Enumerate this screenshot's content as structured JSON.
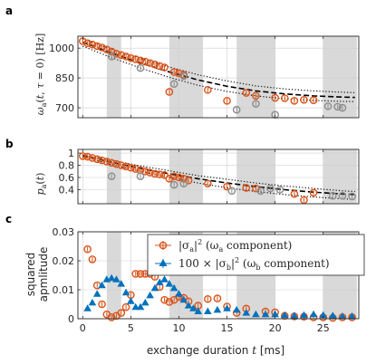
{
  "colors": {
    "orange": "#D95319",
    "blue": "#0072BD",
    "gray": "#8C8C8C",
    "shade": "#D9D9D9",
    "grid": "#E6E6E6"
  },
  "shaded_regions_ms": [
    [
      2.5,
      4
    ],
    [
      9,
      12.5
    ],
    [
      16,
      20
    ],
    [
      25,
      28.5
    ]
  ],
  "chart_data": [
    {
      "panel": "a",
      "type": "scatter",
      "ylabel": "ω_a(t, τ = 0) [Hz]",
      "xlim": [
        -0.5,
        28.7
      ],
      "ylim": [
        650,
        1060
      ],
      "yticks": [
        700,
        850,
        1000
      ],
      "ytick_labels": [
        "700",
        "850",
        "1000"
      ],
      "grid": true,
      "series": [
        {
          "marker": "circle",
          "color": "orange",
          "points": [
            [
              0.0,
              1035
            ],
            [
              0.5,
              1025
            ],
            [
              1.0,
              1018
            ],
            [
              1.5,
              1010
            ],
            [
              2.0,
              1003
            ],
            [
              2.5,
              993
            ],
            [
              3.0,
              983
            ],
            [
              3.5,
              972
            ],
            [
              4.0,
              965
            ],
            [
              4.5,
              958
            ],
            [
              5.0,
              950
            ],
            [
              5.5,
              944
            ],
            [
              6.0,
              938
            ],
            [
              6.5,
              932
            ],
            [
              7.0,
              925
            ],
            [
              7.5,
              918
            ],
            [
              8.0,
              910
            ],
            [
              8.5,
              903
            ],
            [
              9.0,
              780
            ],
            [
              9.5,
              880
            ],
            [
              10.0,
              873
            ],
            [
              10.5,
              866
            ],
            [
              13.0,
              790
            ],
            [
              15.0,
              735
            ],
            [
              17.0,
              775
            ],
            [
              18.0,
              760
            ],
            [
              20.0,
              750
            ],
            [
              21.0,
              748
            ],
            [
              22.0,
              735
            ],
            [
              23.0,
              740
            ],
            [
              24.0,
              738
            ]
          ]
        },
        {
          "marker": "circle",
          "color": "gray",
          "points": [
            [
              3.0,
              958
            ],
            [
              6.0,
              900
            ],
            [
              9.5,
              820
            ],
            [
              10.5,
              860
            ],
            [
              16.0,
              690
            ],
            [
              18.0,
              720
            ],
            [
              20.0,
              665
            ],
            [
              25.5,
              708
            ],
            [
              26.5,
              705
            ],
            [
              27.0,
              700
            ]
          ]
        }
      ],
      "curves": [
        {
          "style": "dashed",
          "points": [
            [
              0,
              1030
            ],
            [
              3,
              975
            ],
            [
              6,
              925
            ],
            [
              9,
              880
            ],
            [
              12,
              840
            ],
            [
              15,
              808
            ],
            [
              18,
              785
            ],
            [
              21,
              770
            ],
            [
              24,
              760
            ],
            [
              27,
              754
            ],
            [
              28.3,
              752
            ]
          ]
        },
        {
          "style": "dotted",
          "points": [
            [
              0,
              1045
            ],
            [
              3,
              995
            ],
            [
              6,
              948
            ],
            [
              9,
              905
            ],
            [
              12,
              866
            ],
            [
              15,
              835
            ],
            [
              18,
              810
            ],
            [
              21,
              795
            ],
            [
              24,
              785
            ],
            [
              27,
              778
            ],
            [
              28.3,
              776
            ]
          ]
        },
        {
          "style": "dotted",
          "points": [
            [
              0,
              1010
            ],
            [
              3,
              952
            ],
            [
              6,
              900
            ],
            [
              9,
              853
            ],
            [
              12,
              813
            ],
            [
              15,
              782
            ],
            [
              18,
              760
            ],
            [
              21,
              745
            ],
            [
              24,
              737
            ],
            [
              27,
              732
            ],
            [
              28.3,
              731
            ]
          ]
        }
      ]
    },
    {
      "panel": "b",
      "type": "scatter",
      "ylabel": "p_a(t)",
      "xlim": [
        -0.5,
        28.7
      ],
      "ylim": [
        0.17,
        1.06
      ],
      "yticks": [
        0.4,
        0.6,
        0.8,
        1.0
      ],
      "ytick_labels": [
        "0.4",
        "0.6",
        "0.8",
        "1"
      ],
      "grid": true,
      "series": [
        {
          "marker": "circle",
          "color": "orange",
          "points": [
            [
              0.0,
              0.95
            ],
            [
              0.5,
              0.94
            ],
            [
              1.0,
              0.92
            ],
            [
              1.5,
              0.9
            ],
            [
              2.0,
              0.88
            ],
            [
              2.5,
              0.86
            ],
            [
              3.0,
              0.84
            ],
            [
              3.5,
              0.82
            ],
            [
              4.0,
              0.8
            ],
            [
              4.5,
              0.78
            ],
            [
              5.0,
              0.76
            ],
            [
              5.5,
              0.74
            ],
            [
              6.0,
              0.72
            ],
            [
              6.5,
              0.7
            ],
            [
              7.0,
              0.68
            ],
            [
              7.5,
              0.66
            ],
            [
              8.0,
              0.65
            ],
            [
              8.5,
              0.64
            ],
            [
              9.0,
              0.58
            ],
            [
              9.5,
              0.62
            ],
            [
              10.0,
              0.6
            ],
            [
              10.5,
              0.58
            ],
            [
              11.0,
              0.55
            ],
            [
              13.0,
              0.5
            ],
            [
              15.0,
              0.45
            ],
            [
              17.0,
              0.43
            ],
            [
              18.0,
              0.42
            ],
            [
              22.0,
              0.33
            ],
            [
              23.0,
              0.23
            ],
            [
              24.0,
              0.35
            ]
          ]
        },
        {
          "marker": "circle",
          "color": "gray",
          "points": [
            [
              3.0,
              0.62
            ],
            [
              6.0,
              0.62
            ],
            [
              9.5,
              0.48
            ],
            [
              10.5,
              0.5
            ],
            [
              15.5,
              0.38
            ],
            [
              18.5,
              0.38
            ],
            [
              19.5,
              0.42
            ],
            [
              20.5,
              0.4
            ],
            [
              26.0,
              0.3
            ],
            [
              27.0,
              0.3
            ],
            [
              28.0,
              0.29
            ]
          ]
        }
      ],
      "curves": [
        {
          "style": "dashed",
          "points": [
            [
              0,
              0.96
            ],
            [
              3,
              0.85
            ],
            [
              6,
              0.75
            ],
            [
              9,
              0.66
            ],
            [
              12,
              0.58
            ],
            [
              15,
              0.51
            ],
            [
              18,
              0.45
            ],
            [
              21,
              0.4
            ],
            [
              24,
              0.36
            ],
            [
              27,
              0.33
            ],
            [
              28.3,
              0.32
            ]
          ]
        },
        {
          "style": "dotted",
          "points": [
            [
              0,
              0.97
            ],
            [
              3,
              0.88
            ],
            [
              6,
              0.79
            ],
            [
              9,
              0.71
            ],
            [
              12,
              0.63
            ],
            [
              15,
              0.57
            ],
            [
              18,
              0.51
            ],
            [
              21,
              0.46
            ],
            [
              24,
              0.42
            ],
            [
              27,
              0.38
            ],
            [
              28.3,
              0.37
            ]
          ]
        },
        {
          "style": "dotted",
          "points": [
            [
              0,
              0.94
            ],
            [
              3,
              0.81
            ],
            [
              6,
              0.7
            ],
            [
              9,
              0.6
            ],
            [
              12,
              0.51
            ],
            [
              15,
              0.43
            ],
            [
              18,
              0.37
            ],
            [
              21,
              0.32
            ],
            [
              24,
              0.28
            ],
            [
              27,
              0.25
            ],
            [
              28.3,
              0.24
            ]
          ]
        }
      ]
    },
    {
      "panel": "c",
      "type": "scatter",
      "xlabel": "exchange duration t [ms]",
      "ylabel_line1": "squared",
      "ylabel_line2": "apmlitude",
      "xlim": [
        -0.5,
        28.7
      ],
      "ylim": [
        0,
        0.03
      ],
      "xticks": [
        0,
        5,
        10,
        15,
        20,
        25
      ],
      "xtick_labels": [
        "0",
        "5",
        "10",
        "15",
        "20",
        "25"
      ],
      "yticks": [
        0,
        0.01,
        0.02,
        0.03
      ],
      "ytick_labels": [
        "0",
        "0.01",
        "0.02",
        "0.03"
      ],
      "grid": true,
      "legend_position": "top-right",
      "series": [
        {
          "name_base": "|σ",
          "name_sub": "a",
          "name_suffix": "|",
          "name_sup": "2",
          "name_rest": " (ω",
          "name_rest_sub": "a",
          "name_tail": " component)",
          "marker": "circle",
          "color": "orange",
          "points": [
            [
              0.5,
              0.024
            ],
            [
              1.0,
              0.0205
            ],
            [
              1.5,
              0.0115
            ],
            [
              2.0,
              0.005
            ],
            [
              2.5,
              0.0015
            ],
            [
              3.0,
              0.0005
            ],
            [
              3.5,
              0.001
            ],
            [
              4.0,
              0.002
            ],
            [
              4.5,
              0.004
            ],
            [
              5.0,
              0.0082
            ],
            [
              5.5,
              0.0155
            ],
            [
              6.0,
              0.0155
            ],
            [
              6.5,
              0.0155
            ],
            [
              7.0,
              0.0155
            ],
            [
              7.5,
              0.0145
            ],
            [
              8.0,
              0.011
            ],
            [
              8.5,
              0.0065
            ],
            [
              9.0,
              0.0058
            ],
            [
              9.5,
              0.0065
            ],
            [
              10.0,
              0.0075
            ],
            [
              10.5,
              0.0072
            ],
            [
              11.0,
              0.006
            ],
            [
              12.0,
              0.0045
            ],
            [
              13.0,
              0.0068
            ],
            [
              14.0,
              0.007
            ],
            [
              15.0,
              0.0042
            ],
            [
              16.0,
              0.002
            ],
            [
              17.0,
              0.0035
            ],
            [
              19.0,
              0.0025
            ],
            [
              20.0,
              0.0022
            ],
            [
              21.0,
              0.001
            ],
            [
              22.0,
              0.0008
            ],
            [
              23.0,
              0.0007
            ],
            [
              24.0,
              0.0005
            ],
            [
              25.0,
              0.0005
            ],
            [
              26.0,
              0.0003
            ],
            [
              27.0,
              0.0005
            ],
            [
              28.0,
              0.0005
            ]
          ]
        },
        {
          "name_base": "100 × |σ",
          "name_sub": "b",
          "name_suffix": "|",
          "name_sup": "2",
          "name_rest": " (ω",
          "name_rest_sub": "b",
          "name_tail": " component)",
          "marker": "triangle",
          "color": "blue",
          "points": [
            [
              0.5,
              0.0035
            ],
            [
              1.0,
              0.0055
            ],
            [
              1.5,
              0.0085
            ],
            [
              2.0,
              0.0115
            ],
            [
              2.5,
              0.0135
            ],
            [
              3.0,
              0.014
            ],
            [
              3.5,
              0.0135
            ],
            [
              4.0,
              0.012
            ],
            [
              4.5,
              0.009
            ],
            [
              5.0,
              0.006
            ],
            [
              5.5,
              0.004
            ],
            [
              6.0,
              0.004
            ],
            [
              6.5,
              0.0055
            ],
            [
              7.0,
              0.008
            ],
            [
              7.5,
              0.0105
            ],
            [
              8.0,
              0.0125
            ],
            [
              8.5,
              0.0135
            ],
            [
              9.0,
              0.012
            ],
            [
              9.5,
              0.0105
            ],
            [
              10.0,
              0.0085
            ],
            [
              10.5,
              0.0065
            ],
            [
              11.0,
              0.0045
            ],
            [
              11.5,
              0.0035
            ],
            [
              12.0,
              0.0025
            ],
            [
              13.0,
              0.0025
            ],
            [
              14.0,
              0.003
            ],
            [
              15.0,
              0.0035
            ],
            [
              16.0,
              0.003
            ],
            [
              17.0,
              0.002
            ],
            [
              18.0,
              0.0015
            ],
            [
              19.0,
              0.0015
            ],
            [
              20.0,
              0.0015
            ],
            [
              21.0,
              0.0012
            ],
            [
              22.0,
              0.001
            ],
            [
              23.0,
              0.0012
            ],
            [
              24.0,
              0.0015
            ],
            [
              25.0,
              0.0012
            ],
            [
              26.0,
              0.001
            ],
            [
              27.0,
              0.0008
            ],
            [
              28.0,
              0.0008
            ]
          ]
        }
      ]
    }
  ]
}
